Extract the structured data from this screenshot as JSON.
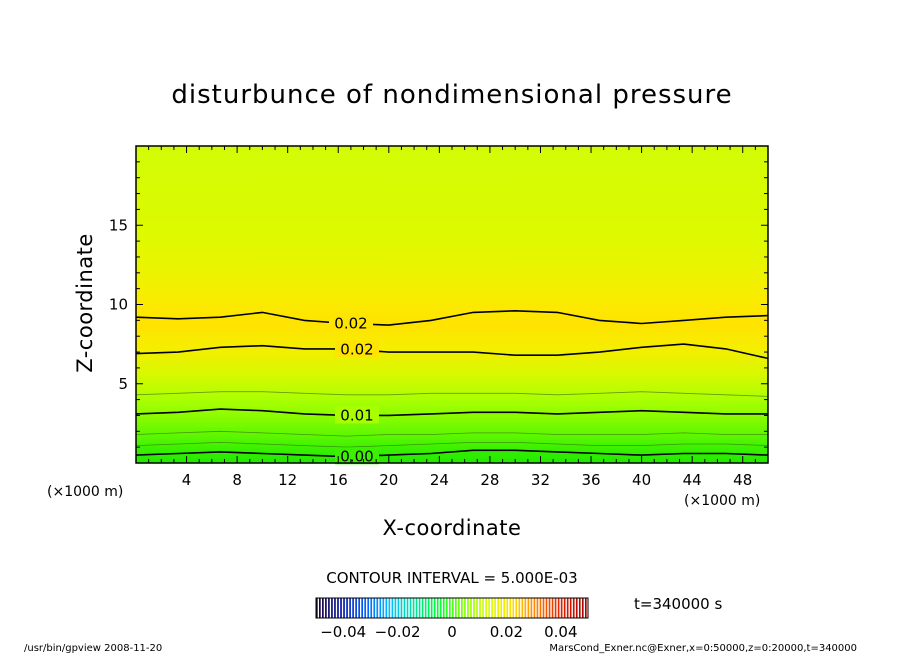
{
  "chart_data": {
    "type": "heatmap",
    "title": "disturbunce of nondimensional pressure",
    "xlabel": "X-coordinate",
    "ylabel": "Z-coordinate",
    "x_unit": "(×1000 m)",
    "y_unit": "(×1000 m)",
    "xlim": [
      0,
      50
    ],
    "ylim": [
      0,
      20
    ],
    "x_ticks": [
      "4",
      "8",
      "12",
      "16",
      "20",
      "24",
      "28",
      "32",
      "36",
      "40",
      "44",
      "48"
    ],
    "y_ticks": [
      "5",
      "10",
      "15"
    ],
    "colorbar": {
      "range": [
        -0.05,
        0.05
      ],
      "ticks": [
        "−0.04",
        "−0.02",
        "0",
        "0.02",
        "0.04"
      ],
      "colors": [
        "#1a0033",
        "#0010a0",
        "#0060ff",
        "#00c0ff",
        "#00e0a0",
        "#00ff30",
        "#80ff00",
        "#d8ff00",
        "#ffe000",
        "#ff8000",
        "#e02000",
        "#a00000"
      ]
    },
    "contours": [
      {
        "label": "0.02",
        "value": 0.02,
        "z": [
          9.2,
          9.1,
          9.2,
          9.5,
          9.0,
          8.8,
          8.7,
          9.0,
          9.5,
          9.6,
          9.5,
          9.0,
          8.8,
          9.0,
          9.2,
          9.3
        ]
      },
      {
        "label": "0.02",
        "value": 0.015,
        "z": [
          6.9,
          7.0,
          7.3,
          7.4,
          7.2,
          7.2,
          7.0,
          7.0,
          7.0,
          6.8,
          6.8,
          7.0,
          7.3,
          7.5,
          7.2,
          6.6
        ]
      },
      {
        "label": "0.01",
        "value": 0.01,
        "z": [
          3.1,
          3.2,
          3.4,
          3.3,
          3.1,
          3.0,
          3.0,
          3.1,
          3.2,
          3.2,
          3.1,
          3.2,
          3.3,
          3.2,
          3.1,
          3.1
        ]
      },
      {
        "label": "0.00",
        "value": 0.0,
        "z": [
          0.5,
          0.6,
          0.7,
          0.6,
          0.5,
          0.4,
          0.5,
          0.6,
          0.8,
          0.8,
          0.7,
          0.6,
          0.5,
          0.6,
          0.6,
          0.5
        ]
      }
    ],
    "thin_contours": [
      {
        "z": [
          1.1,
          1.2,
          1.3,
          1.2,
          1.1,
          1.0,
          1.1,
          1.2,
          1.3,
          1.3,
          1.2,
          1.1,
          1.1,
          1.2,
          1.2,
          1.1
        ]
      },
      {
        "z": [
          1.8,
          1.9,
          2.0,
          1.9,
          1.8,
          1.7,
          1.8,
          1.8,
          1.9,
          1.9,
          1.8,
          1.8,
          1.8,
          1.9,
          1.8,
          1.8
        ]
      },
      {
        "z": [
          4.3,
          4.4,
          4.5,
          4.5,
          4.4,
          4.3,
          4.3,
          4.4,
          4.4,
          4.4,
          4.3,
          4.4,
          4.5,
          4.4,
          4.3,
          4.2
        ]
      }
    ],
    "grid": false
  },
  "contour_interval": "CONTOUR INTERVAL = 5.000E-03",
  "time_label": "t=340000  s",
  "footer_left": "/usr/bin/gpview   2008-11-20",
  "footer_right": "MarsCond_Exner.nc@Exner,x=0:50000,z=0:20000,t=340000"
}
